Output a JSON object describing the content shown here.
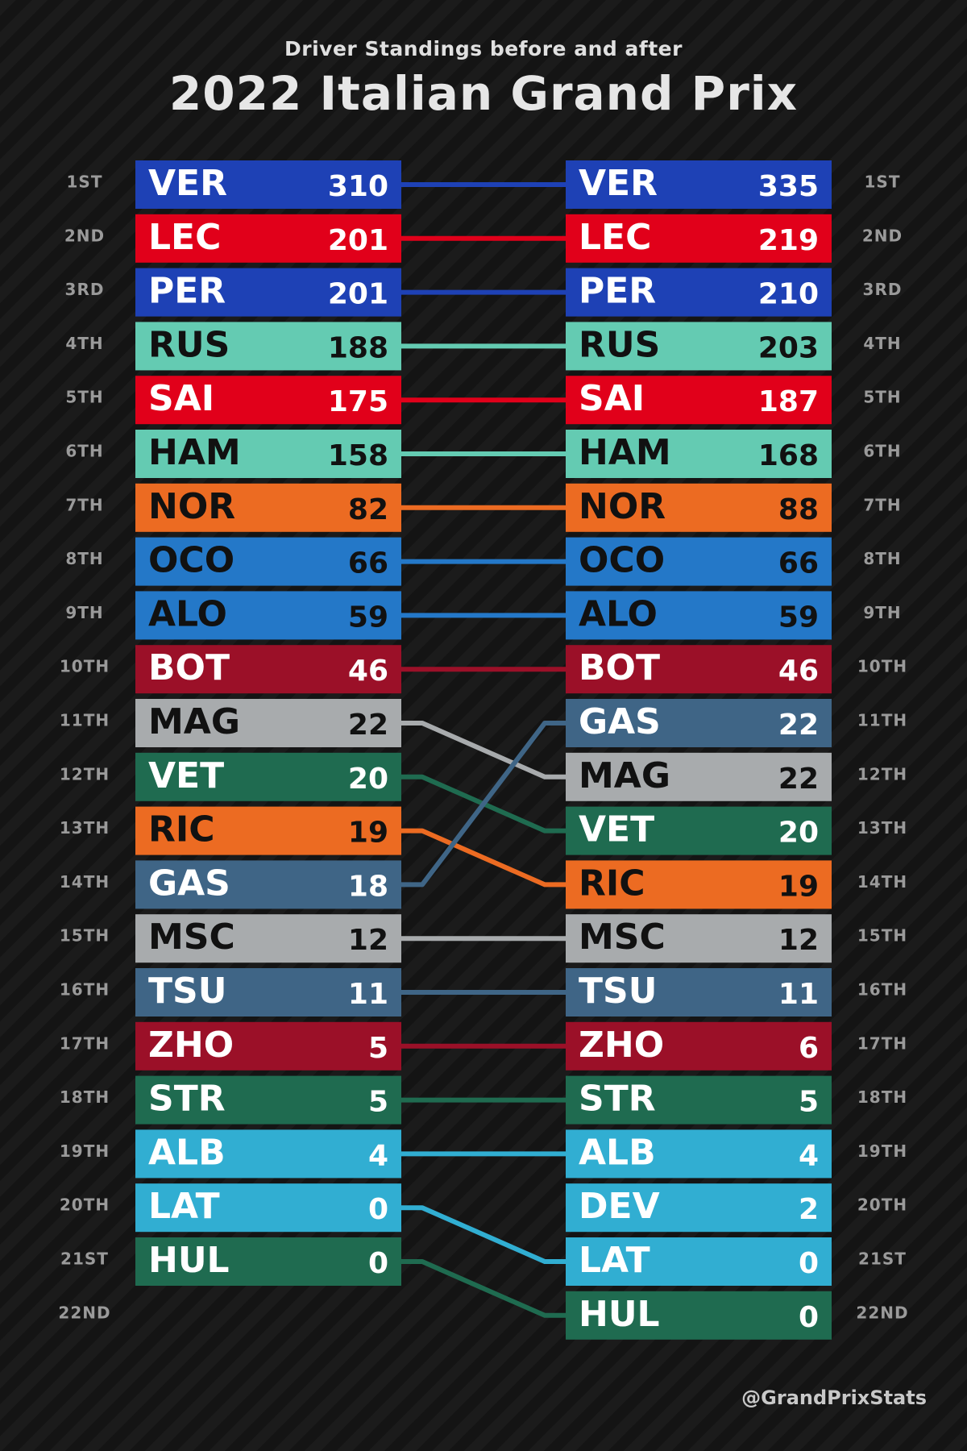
{
  "subtitle": "Driver Standings before and after",
  "title": "2022 Italian Grand Prix",
  "credit": "@GrandPrixStats",
  "colors": {
    "red_bull": "#1E41B5",
    "ferrari": "#E1001A",
    "mercedes": "#64CBB2",
    "mclaren": "#EC6B22",
    "alpine": "#2478C8",
    "alfa_romeo": "#9B1028",
    "haas": "#A8ABAD",
    "aston_martin": "#1F6B50",
    "alphatauri": "#3F6586",
    "williams": "#31AED2",
    "dark_text": "#111111",
    "light_text": "#FFFFFF",
    "position_text": "#9A9A9A"
  },
  "chart_data": {
    "type": "table",
    "positions": [
      "1ST",
      "2ND",
      "3RD",
      "4TH",
      "5TH",
      "6TH",
      "7TH",
      "8TH",
      "9TH",
      "10TH",
      "11TH",
      "12TH",
      "13TH",
      "14TH",
      "15TH",
      "16TH",
      "17TH",
      "18TH",
      "19TH",
      "20TH",
      "21ST",
      "22ND"
    ],
    "before": [
      {
        "driver": "VER",
        "points": "310",
        "team": "red_bull"
      },
      {
        "driver": "LEC",
        "points": "201",
        "team": "ferrari"
      },
      {
        "driver": "PER",
        "points": "201",
        "team": "red_bull"
      },
      {
        "driver": "RUS",
        "points": "188",
        "team": "mercedes"
      },
      {
        "driver": "SAI",
        "points": "175",
        "team": "ferrari"
      },
      {
        "driver": "HAM",
        "points": "158",
        "team": "mercedes"
      },
      {
        "driver": "NOR",
        "points": "82",
        "team": "mclaren"
      },
      {
        "driver": "OCO",
        "points": "66",
        "team": "alpine"
      },
      {
        "driver": "ALO",
        "points": "59",
        "team": "alpine"
      },
      {
        "driver": "BOT",
        "points": "46",
        "team": "alfa_romeo"
      },
      {
        "driver": "MAG",
        "points": "22",
        "team": "haas"
      },
      {
        "driver": "VET",
        "points": "20",
        "team": "aston_martin"
      },
      {
        "driver": "RIC",
        "points": "19",
        "team": "mclaren"
      },
      {
        "driver": "GAS",
        "points": "18",
        "team": "alphatauri"
      },
      {
        "driver": "MSC",
        "points": "12",
        "team": "haas"
      },
      {
        "driver": "TSU",
        "points": "11",
        "team": "alphatauri"
      },
      {
        "driver": "ZHO",
        "points": "5",
        "team": "alfa_romeo"
      },
      {
        "driver": "STR",
        "points": "5",
        "team": "aston_martin"
      },
      {
        "driver": "ALB",
        "points": "4",
        "team": "williams"
      },
      {
        "driver": "LAT",
        "points": "0",
        "team": "williams"
      },
      {
        "driver": "HUL",
        "points": "0",
        "team": "aston_martin"
      }
    ],
    "after": [
      {
        "driver": "VER",
        "points": "335",
        "team": "red_bull"
      },
      {
        "driver": "LEC",
        "points": "219",
        "team": "ferrari"
      },
      {
        "driver": "PER",
        "points": "210",
        "team": "red_bull"
      },
      {
        "driver": "RUS",
        "points": "203",
        "team": "mercedes"
      },
      {
        "driver": "SAI",
        "points": "187",
        "team": "ferrari"
      },
      {
        "driver": "HAM",
        "points": "168",
        "team": "mercedes"
      },
      {
        "driver": "NOR",
        "points": "88",
        "team": "mclaren"
      },
      {
        "driver": "OCO",
        "points": "66",
        "team": "alpine"
      },
      {
        "driver": "ALO",
        "points": "59",
        "team": "alpine"
      },
      {
        "driver": "BOT",
        "points": "46",
        "team": "alfa_romeo"
      },
      {
        "driver": "GAS",
        "points": "22",
        "team": "alphatauri"
      },
      {
        "driver": "MAG",
        "points": "22",
        "team": "haas"
      },
      {
        "driver": "VET",
        "points": "20",
        "team": "aston_martin"
      },
      {
        "driver": "RIC",
        "points": "19",
        "team": "mclaren"
      },
      {
        "driver": "MSC",
        "points": "12",
        "team": "haas"
      },
      {
        "driver": "TSU",
        "points": "11",
        "team": "alphatauri"
      },
      {
        "driver": "ZHO",
        "points": "6",
        "team": "alfa_romeo"
      },
      {
        "driver": "STR",
        "points": "5",
        "team": "aston_martin"
      },
      {
        "driver": "ALB",
        "points": "4",
        "team": "williams"
      },
      {
        "driver": "DEV",
        "points": "2",
        "team": "williams"
      },
      {
        "driver": "LAT",
        "points": "0",
        "team": "williams"
      },
      {
        "driver": "HUL",
        "points": "0",
        "team": "aston_martin"
      }
    ]
  }
}
